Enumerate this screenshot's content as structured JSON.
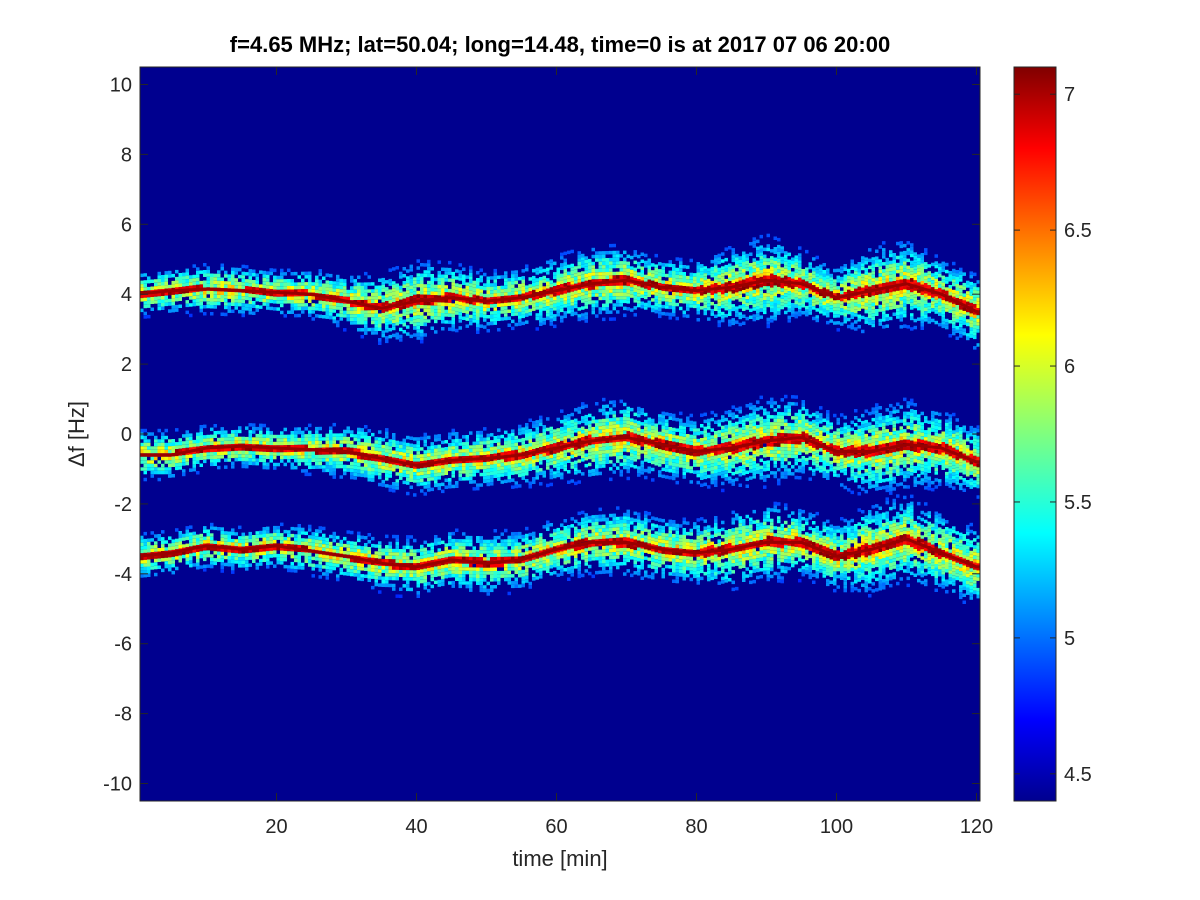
{
  "chart_data": {
    "type": "heatmap",
    "title": "f=4.65 MHz;  lat=50.04; long=14.48, time=0 is at 2017 07 06 20:00",
    "xlabel": "time [min]",
    "ylabel": "Δf [Hz]",
    "xlim": [
      0.5,
      120.5
    ],
    "ylim": [
      -10.5,
      10.5
    ],
    "xticks": [
      20,
      40,
      60,
      80,
      100,
      120
    ],
    "yticks": [
      10,
      8,
      6,
      4,
      2,
      0,
      -2,
      -4,
      -6,
      -8,
      -10
    ],
    "colormap": "jet",
    "colorbar": {
      "range": [
        4.4,
        7.1
      ],
      "ticks": [
        4.5,
        5,
        5.5,
        6,
        6.5,
        7
      ]
    },
    "background_color": "#00008F",
    "traces": [
      {
        "t": [
          0,
          5,
          10,
          15,
          20,
          25,
          30,
          35,
          40,
          45,
          50,
          55,
          60,
          65,
          70,
          75,
          80,
          85,
          90,
          95,
          100,
          105,
          110,
          115,
          120
        ],
        "df": [
          4.0,
          4.1,
          4.15,
          4.1,
          4.05,
          4.0,
          3.8,
          3.6,
          3.8,
          3.9,
          3.8,
          3.9,
          4.1,
          4.3,
          4.4,
          4.2,
          4.1,
          4.2,
          4.4,
          4.3,
          3.9,
          4.1,
          4.3,
          4.0,
          3.5
        ],
        "spread": [
          0.45,
          0.45,
          0.5,
          0.5,
          0.45,
          0.5,
          0.55,
          0.7,
          0.8,
          0.7,
          0.6,
          0.6,
          0.7,
          0.75,
          0.7,
          0.6,
          0.6,
          0.8,
          0.9,
          0.7,
          0.6,
          0.9,
          0.9,
          0.7,
          0.8
        ]
      },
      {
        "t": [
          0,
          5,
          10,
          15,
          20,
          25,
          30,
          35,
          40,
          45,
          50,
          55,
          60,
          65,
          70,
          75,
          80,
          85,
          90,
          95,
          100,
          105,
          110,
          115,
          120
        ],
        "df": [
          -0.6,
          -0.6,
          -0.4,
          -0.35,
          -0.4,
          -0.45,
          -0.5,
          -0.7,
          -0.9,
          -0.75,
          -0.7,
          -0.6,
          -0.4,
          -0.2,
          -0.1,
          -0.3,
          -0.5,
          -0.4,
          -0.2,
          -0.1,
          -0.5,
          -0.5,
          -0.3,
          -0.4,
          -0.8
        ],
        "spread": [
          0.5,
          0.5,
          0.45,
          0.45,
          0.45,
          0.5,
          0.55,
          0.6,
          0.6,
          0.6,
          0.6,
          0.65,
          0.7,
          0.8,
          0.8,
          0.7,
          0.7,
          0.8,
          0.9,
          0.8,
          0.7,
          0.9,
          0.9,
          0.8,
          0.7
        ]
      },
      {
        "t": [
          0,
          5,
          10,
          15,
          20,
          25,
          30,
          35,
          40,
          45,
          50,
          55,
          60,
          65,
          70,
          75,
          80,
          85,
          90,
          95,
          100,
          105,
          110,
          115,
          120
        ],
        "df": [
          -3.5,
          -3.4,
          -3.2,
          -3.3,
          -3.2,
          -3.35,
          -3.5,
          -3.7,
          -3.8,
          -3.6,
          -3.7,
          -3.6,
          -3.3,
          -3.1,
          -3.1,
          -3.3,
          -3.4,
          -3.3,
          -3.1,
          -3.1,
          -3.5,
          -3.3,
          -3.0,
          -3.4,
          -3.8
        ],
        "spread": [
          0.45,
          0.45,
          0.45,
          0.45,
          0.45,
          0.5,
          0.5,
          0.55,
          0.6,
          0.6,
          0.65,
          0.6,
          0.6,
          0.65,
          0.7,
          0.65,
          0.65,
          0.8,
          0.8,
          0.7,
          0.7,
          0.9,
          0.9,
          0.8,
          0.8
        ]
      }
    ]
  }
}
